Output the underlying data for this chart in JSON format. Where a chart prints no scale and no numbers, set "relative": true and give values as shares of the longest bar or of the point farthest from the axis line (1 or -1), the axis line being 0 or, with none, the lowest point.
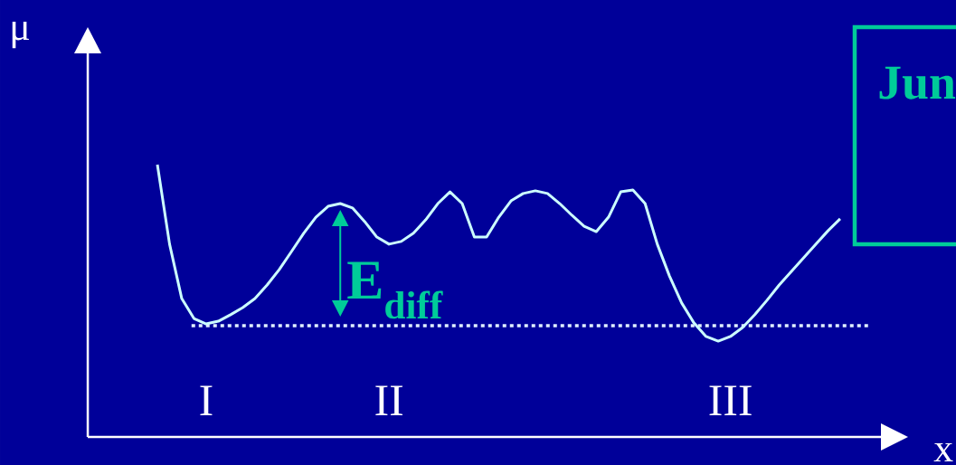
{
  "chart_data": {
    "type": "line",
    "relative": true,
    "xlabel": "x",
    "ylabel": "μ",
    "marker": "none",
    "categories": [
      null,
      null,
      null,
      null,
      "I",
      null,
      null,
      null,
      null,
      null,
      null,
      null,
      null,
      null,
      null,
      null,
      null,
      null,
      null,
      "II",
      null,
      null,
      null,
      null,
      null,
      null,
      null,
      null,
      null,
      null,
      null,
      null,
      null,
      null,
      null,
      null,
      null,
      null,
      null,
      null,
      null,
      null,
      null,
      null,
      null,
      null,
      null,
      "III",
      null,
      null,
      null,
      null,
      null,
      null,
      null,
      null,
      null
    ],
    "series": [
      {
        "color": "#ccffff",
        "values": [
          1.0,
          0.708,
          0.508,
          0.435,
          0.415,
          0.425,
          0.449,
          0.475,
          0.508,
          0.558,
          0.615,
          0.681,
          0.748,
          0.807,
          0.847,
          0.857,
          0.841,
          0.791,
          0.734,
          0.708,
          0.718,
          0.748,
          0.797,
          0.857,
          0.9,
          0.857,
          0.734,
          0.734,
          0.807,
          0.867,
          0.894,
          0.904,
          0.894,
          0.857,
          0.814,
          0.774,
          0.754,
          0.807,
          0.9,
          0.907,
          0.857,
          0.708,
          0.591,
          0.492,
          0.419,
          0.369,
          0.352,
          0.369,
          0.402,
          0.449,
          0.502,
          0.558,
          0.608,
          0.658,
          0.708,
          0.757,
          0.801
        ]
      }
    ],
    "ref_lines": [
      {
        "axis": "y",
        "value": 0.409,
        "color": "#e0f0ff",
        "line_style": "dotted"
      }
    ],
    "annotations": [
      "E$_{diff}$",
      "Jun"
    ]
  }
}
